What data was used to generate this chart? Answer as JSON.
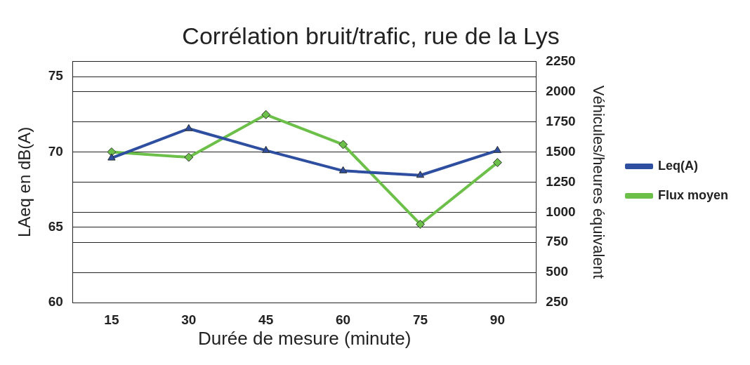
{
  "chart_data": {
    "type": "line",
    "title": "Corrélation bruit/trafic, rue de la Lys",
    "xlabel": "Durée de mesure (minute)",
    "ylabel": "LAeq en dB(A)",
    "y2label": "Véhicules/heures équivalent",
    "categories": [
      "15",
      "30",
      "45",
      "60",
      "75",
      "90"
    ],
    "series": [
      {
        "name": "Leq(A)",
        "color": "#2e4ea0",
        "marker": "triangle",
        "values": [
          69.6,
          71.55,
          70.1,
          68.75,
          68.45,
          70.1
        ]
      },
      {
        "name": "Flux moyen",
        "color": "#6cc04a",
        "marker": "diamond",
        "axis": "y2",
        "values": [
          1500,
          1456,
          1810,
          1562,
          900,
          1412
        ]
      }
    ],
    "ylim": [
      60,
      76
    ],
    "yticks": [
      60,
      65,
      70,
      75
    ],
    "y2lim": [
      250,
      2250
    ],
    "y2ticks": [
      250,
      500,
      750,
      1000,
      1250,
      1500,
      1750,
      2000,
      2250
    ],
    "grid": "y",
    "legend": "right"
  }
}
